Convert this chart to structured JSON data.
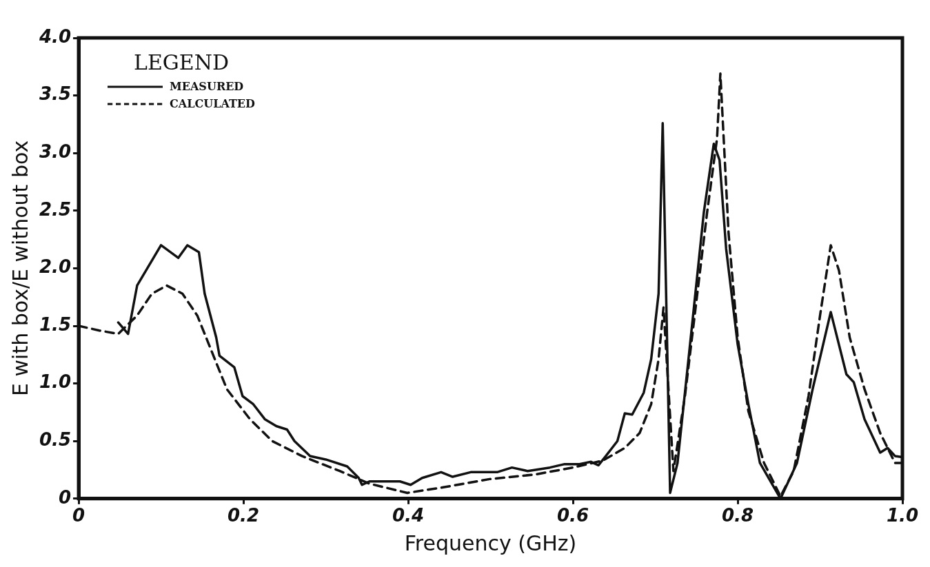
{
  "chart_data": {
    "type": "line",
    "xlabel": "Frequency (GHz)",
    "ylabel": "E with box/E without box",
    "legend_title": "LEGEND",
    "legend": "top left",
    "grid": false,
    "marker": "none",
    "xlim": [
      0,
      1
    ],
    "xticks": [
      0,
      0.2,
      0.4,
      0.6,
      0.8,
      {
        "value": 1,
        "label": "1.0"
      }
    ],
    "ylim": [
      0,
      4
    ],
    "yticks": [
      0,
      0.5,
      {
        "value": 1,
        "label": "1.0"
      },
      1.5,
      {
        "value": 2,
        "label": "2.0"
      },
      2.5,
      {
        "value": 3,
        "label": "3.0"
      },
      3.5,
      {
        "value": 4,
        "label": "4.0"
      }
    ],
    "series": [
      {
        "name": "MEASURED",
        "color": "#111111",
        "line_style": "solid",
        "x": [
          0.048,
          0.06,
          0.071,
          0.1,
          0.121,
          0.132,
          0.146,
          0.153,
          0.167,
          0.171,
          0.189,
          0.199,
          0.212,
          0.226,
          0.24,
          0.253,
          0.262,
          0.281,
          0.3,
          0.326,
          0.34,
          0.344,
          0.353,
          0.39,
          0.403,
          0.417,
          0.44,
          0.454,
          0.476,
          0.508,
          0.526,
          0.545,
          0.572,
          0.59,
          0.608,
          0.622,
          0.631,
          0.64,
          0.654,
          0.663,
          0.672,
          0.686,
          0.695,
          0.704,
          0.709,
          0.718,
          0.727,
          0.745,
          0.759,
          0.771,
          0.778,
          0.786,
          0.8,
          0.813,
          0.827,
          0.852,
          0.872,
          0.891,
          0.913,
          0.932,
          0.941,
          0.954,
          0.973,
          0.982,
          0.991,
          1.0
        ],
        "values": [
          1.53,
          1.43,
          1.85,
          2.2,
          2.09,
          2.2,
          2.14,
          1.78,
          1.4,
          1.24,
          1.14,
          0.89,
          0.82,
          0.69,
          0.63,
          0.6,
          0.5,
          0.37,
          0.34,
          0.28,
          0.18,
          0.12,
          0.15,
          0.15,
          0.12,
          0.18,
          0.23,
          0.19,
          0.23,
          0.23,
          0.27,
          0.24,
          0.27,
          0.3,
          0.3,
          0.32,
          0.29,
          0.37,
          0.5,
          0.74,
          0.73,
          0.92,
          1.21,
          1.78,
          3.26,
          0.05,
          0.31,
          1.53,
          2.49,
          3.08,
          2.94,
          2.17,
          1.34,
          0.82,
          0.31,
          0,
          0.31,
          0.95,
          1.62,
          1.08,
          1.01,
          0.69,
          0.4,
          0.44,
          0.37,
          0.36
        ]
      },
      {
        "name": "CALCULATED",
        "color": "#111111",
        "line_style": "dashed",
        "x": [
          0,
          0.025,
          0.048,
          0.071,
          0.089,
          0.107,
          0.126,
          0.144,
          0.162,
          0.18,
          0.208,
          0.235,
          0.271,
          0.317,
          0.353,
          0.399,
          0.444,
          0.499,
          0.554,
          0.6,
          0.636,
          0.663,
          0.681,
          0.695,
          0.704,
          0.71,
          0.722,
          0.736,
          0.75,
          0.763,
          0.775,
          0.779,
          0.783,
          0.789,
          0.8,
          0.813,
          0.832,
          0.852,
          0.868,
          0.886,
          0.9,
          0.913,
          0.923,
          0.936,
          0.954,
          0.973,
          0.991,
          1.0
        ],
        "values": [
          1.5,
          1.46,
          1.43,
          1.59,
          1.78,
          1.85,
          1.78,
          1.59,
          1.27,
          0.95,
          0.69,
          0.5,
          0.37,
          0.24,
          0.13,
          0.05,
          0.1,
          0.17,
          0.21,
          0.27,
          0.33,
          0.44,
          0.57,
          0.82,
          1.21,
          1.66,
          0.24,
          0.89,
          1.72,
          2.49,
          3.13,
          3.69,
          3.13,
          2.3,
          1.4,
          0.76,
          0.31,
          0.02,
          0.24,
          0.89,
          1.59,
          2.2,
          1.98,
          1.4,
          0.95,
          0.57,
          0.31,
          0.31
        ]
      }
    ]
  }
}
